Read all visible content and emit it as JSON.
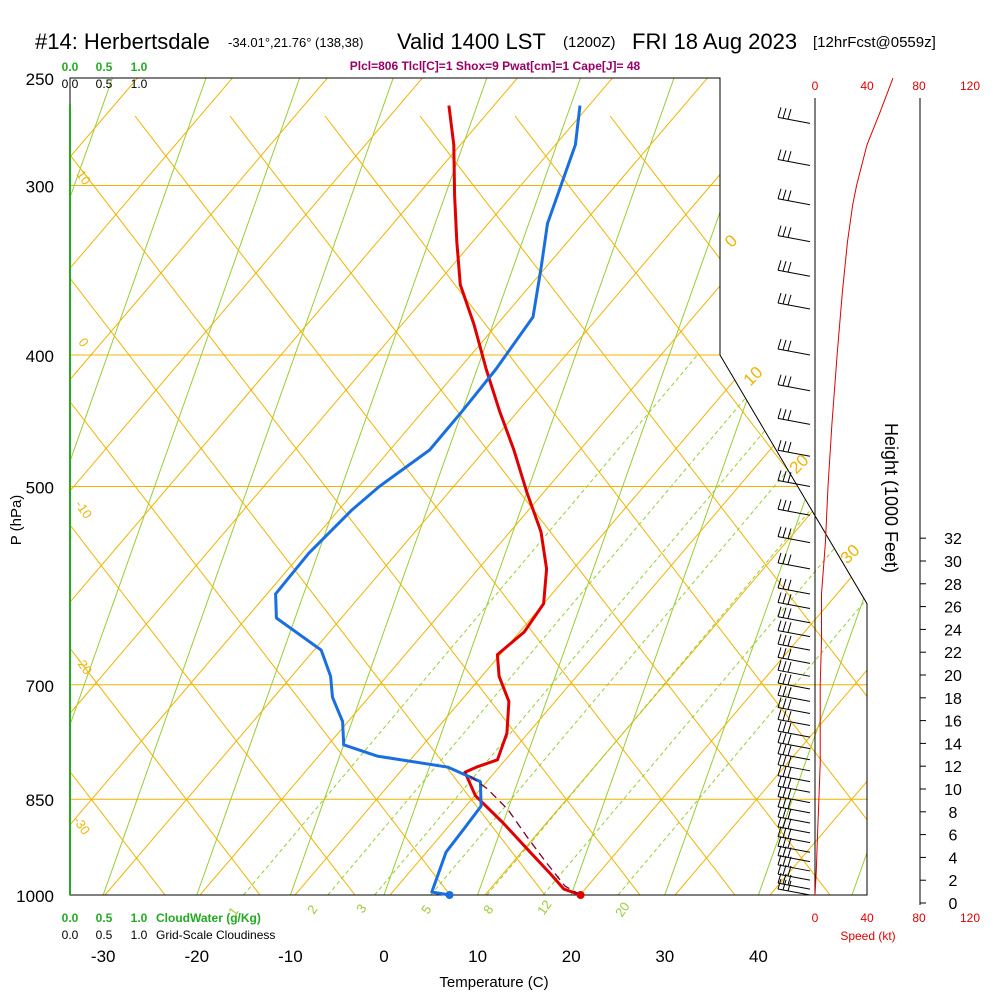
{
  "header": {
    "station": "#14: Herbertsdale",
    "coords": "-34.01°,21.76° (138,38)",
    "valid": "Valid 1400 LST",
    "zulu": "(1200Z)",
    "date": "FRI 18 Aug 2023",
    "forecast": "[12hrFcst@0559z]",
    "indices": "Plcl=806 Tlcl[C]=1 Shox=9 Pwat[cm]=1 Cape[J]= 48"
  },
  "colors": {
    "isobar": "#f0b400",
    "dry_adiabat": "#f0b400",
    "isotherm": "#9acd32",
    "mixing_ratio": "#9acd32",
    "temperature": "#e00000",
    "dewpoint": "#1a6fe0",
    "parcel": "#7a0030",
    "cloud_axis": "#22aa22",
    "speed": "#e00000",
    "indices": "#990066"
  },
  "chart_data": {
    "type": "line",
    "title": "#14: Herbertsdale",
    "xlabel": "Temperature (C)",
    "ylabel": "P (hPa)",
    "right_label": "Height (1000 Feet)",
    "speed_label": "Speed (kt)",
    "x_ticks": [
      "-30",
      "-20",
      "-10",
      "0",
      "10",
      "20",
      "30",
      "40"
    ],
    "x_tick_values": [
      -30,
      -20,
      -10,
      0,
      10,
      20,
      30,
      40
    ],
    "pressure_ticks": [
      "250",
      "300",
      "400",
      "500",
      "700",
      "850",
      "1000"
    ],
    "pressure_tick_values": [
      250,
      300,
      400,
      500,
      700,
      850,
      1000
    ],
    "height_ticks": [
      "0",
      "2",
      "4",
      "6",
      "8",
      "10",
      "12",
      "14",
      "16",
      "18",
      "20",
      "22",
      "24",
      "26",
      "28",
      "30",
      "32"
    ],
    "speed_ticks": [
      "0",
      "40",
      "80",
      "120"
    ],
    "cloudwater_ticks": [
      "0.0",
      "0.5",
      "1.0"
    ],
    "cloudiness_ticks": [
      "0.0",
      "0.5",
      "1.0"
    ],
    "cloudwater_label": "CloudWater (g/Kg)",
    "cloudiness_label": "Grid-Scale Cloudiness",
    "mixing_ratio_labels": [
      "1",
      "2",
      "3",
      "5",
      "8",
      "12",
      "20"
    ],
    "dry_adiabat_labels": [
      "10",
      "0",
      "-10",
      "-20",
      "-30"
    ],
    "moist_adiabat_labels": [
      "0",
      "10",
      "20",
      "30"
    ],
    "series": [
      {
        "name": "temperature",
        "points": [
          [
            21,
            1000
          ],
          [
            19,
            990
          ],
          [
            17,
            965
          ],
          [
            14,
            930
          ],
          [
            10,
            885
          ],
          [
            6,
            845
          ],
          [
            4,
            812
          ],
          [
            5,
            805
          ],
          [
            7,
            795
          ],
          [
            7,
            760
          ],
          [
            6,
            720
          ],
          [
            4,
            690
          ],
          [
            3,
            665
          ],
          [
            5,
            640
          ],
          [
            6,
            610
          ],
          [
            5,
            575
          ],
          [
            3,
            540
          ],
          [
            0,
            505
          ],
          [
            -3,
            470
          ],
          [
            -6,
            440
          ],
          [
            -9,
            410
          ],
          [
            -12,
            380
          ],
          [
            -15,
            355
          ],
          [
            -17,
            330
          ],
          [
            -19,
            305
          ],
          [
            -21,
            280
          ],
          [
            -23,
            262
          ]
        ]
      },
      {
        "name": "dewpoint",
        "points": [
          [
            7,
            1000
          ],
          [
            5,
            995
          ],
          [
            5,
            970
          ],
          [
            5,
            930
          ],
          [
            6,
            895
          ],
          [
            7,
            860
          ],
          [
            6,
            825
          ],
          [
            2,
            805
          ],
          [
            -6,
            790
          ],
          [
            -10,
            775
          ],
          [
            -11,
            745
          ],
          [
            -13,
            715
          ],
          [
            -14,
            690
          ],
          [
            -16,
            660
          ],
          [
            -22,
            625
          ],
          [
            -23,
            600
          ],
          [
            -21,
            560
          ],
          [
            -18,
            520
          ],
          [
            -16,
            500
          ],
          [
            -12,
            470
          ],
          [
            -10,
            440
          ],
          [
            -8,
            410
          ],
          [
            -6,
            375
          ],
          [
            -7,
            345
          ],
          [
            -8,
            320
          ],
          [
            -8,
            300
          ],
          [
            -8,
            280
          ],
          [
            -9,
            262
          ]
        ]
      },
      {
        "name": "parcel",
        "points": [
          [
            21,
            1000
          ],
          [
            19,
            985
          ],
          [
            16,
            945
          ],
          [
            13,
            905
          ],
          [
            10,
            865
          ],
          [
            7,
            835
          ],
          [
            4,
            812
          ]
        ]
      }
    ],
    "surface_temperature": 21,
    "surface_dewpoint": 7,
    "speed_profile": [
      [
        0,
        1000
      ],
      [
        1,
        960
      ],
      [
        2,
        900
      ],
      [
        3,
        850
      ],
      [
        4,
        800
      ],
      [
        4,
        700
      ],
      [
        5,
        650
      ],
      [
        5,
        600
      ],
      [
        8,
        550
      ],
      [
        10,
        500
      ],
      [
        13,
        450
      ],
      [
        17,
        400
      ],
      [
        21,
        360
      ],
      [
        25,
        330
      ],
      [
        29,
        310
      ],
      [
        32,
        300
      ],
      [
        40,
        280
      ],
      [
        50,
        265
      ],
      [
        60,
        250
      ]
    ],
    "wind_pressures": [
      1000,
      990,
      975,
      960,
      945,
      930,
      915,
      900,
      885,
      870,
      855,
      840,
      825,
      810,
      795,
      780,
      765,
      750,
      735,
      720,
      705,
      690,
      675,
      660,
      645,
      630,
      615,
      600,
      575,
      550,
      525,
      500,
      475,
      450,
      425,
      400,
      370,
      350,
      330,
      310,
      290,
      270
    ]
  }
}
